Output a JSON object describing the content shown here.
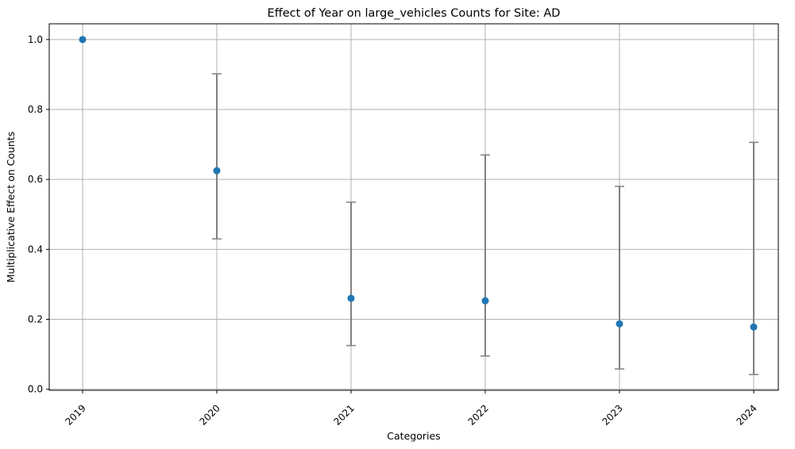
{
  "chart_data": {
    "type": "scatter",
    "title": "Effect of Year on large_vehicles Counts for Site: AD",
    "xlabel": "Categories",
    "ylabel": "Multiplicative Effect on Counts",
    "categories": [
      "2019",
      "2020",
      "2021",
      "2022",
      "2023",
      "2024"
    ],
    "series": [
      {
        "values": [
          1.0,
          0.625,
          0.26,
          0.253,
          0.187,
          0.178
        ],
        "lower": [
          1.0,
          0.43,
          0.125,
          0.095,
          0.058,
          0.042
        ],
        "upper": [
          1.0,
          0.902,
          0.535,
          0.67,
          0.58,
          0.706
        ]
      }
    ],
    "ylim": [
      -0.003,
      1.045
    ],
    "yticks": [
      0.0,
      0.2,
      0.4,
      0.6,
      0.8,
      1.0
    ],
    "ytick_labels": [
      "0.0",
      "0.2",
      "0.4",
      "0.6",
      "0.8",
      "1.0"
    ],
    "grid": true,
    "colors": {
      "point": "#1f77b4",
      "errorbar": "#808080",
      "grid": "#b0b0b0",
      "axis": "#000000"
    }
  }
}
